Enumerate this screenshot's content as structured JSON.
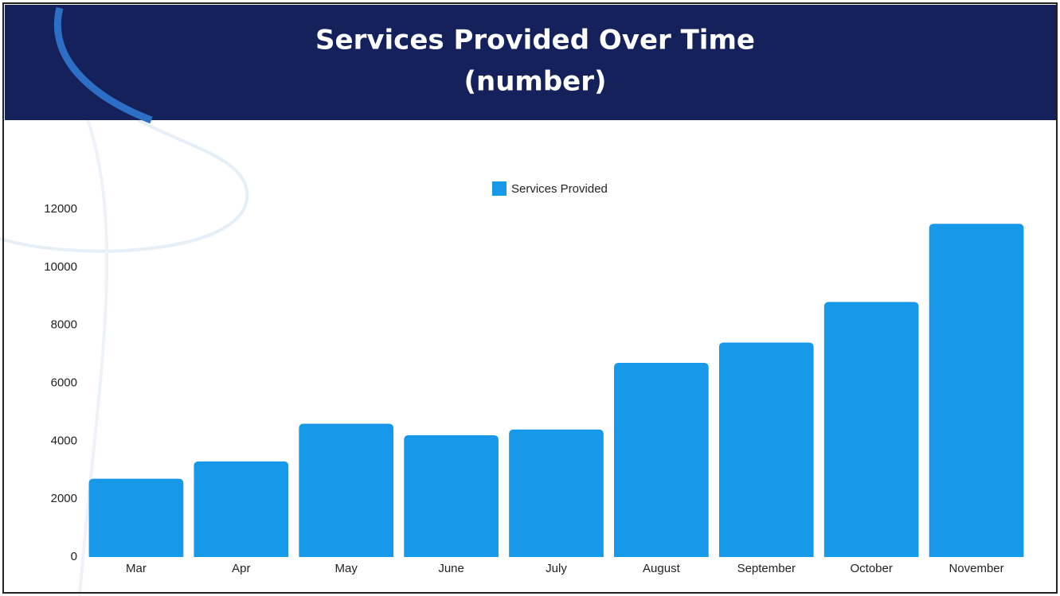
{
  "chart_data": {
    "type": "bar",
    "title": "Services Provided Over Time",
    "subtitle": "(number)",
    "categories": [
      "Mar",
      "Apr",
      "May",
      "June",
      "July",
      "August",
      "September",
      "October",
      "November"
    ],
    "series": [
      {
        "name": "Services Provided",
        "color": "#1799ea",
        "values": [
          2700,
          3300,
          4600,
          4200,
          4400,
          6700,
          7400,
          8800,
          11500
        ]
      }
    ],
    "ylim": [
      0,
      12000
    ],
    "yticks": [
      0,
      2000,
      4000,
      6000,
      8000,
      10000,
      12000
    ],
    "grid": false,
    "legend": "top"
  }
}
